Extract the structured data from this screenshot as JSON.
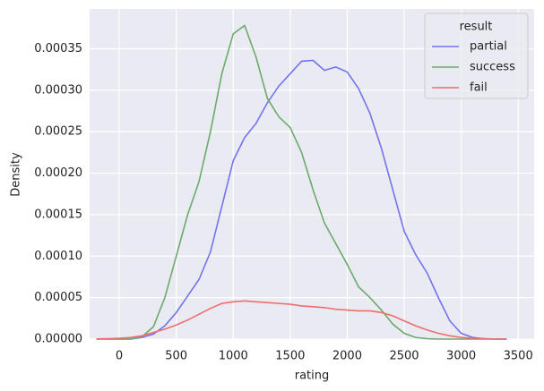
{
  "chart_data": {
    "type": "line",
    "xlabel": "rating",
    "ylabel": "Density",
    "x": [
      -200,
      -100,
      0,
      100,
      200,
      300,
      400,
      500,
      600,
      700,
      800,
      900,
      1000,
      1100,
      1200,
      1300,
      1400,
      1500,
      1600,
      1700,
      1800,
      1900,
      2000,
      2100,
      2200,
      2300,
      2400,
      2500,
      2600,
      2700,
      2800,
      2900,
      3000,
      3100,
      3200,
      3300,
      3400
    ],
    "series": [
      {
        "name": "partial",
        "color": "#7373ee",
        "values": [
          0,
          0,
          0,
          0,
          2e-06,
          6e-06,
          1.6e-05,
          3.2e-05,
          5.2e-05,
          7.2e-05,
          0.000105,
          0.00016,
          0.000215,
          0.000243,
          0.00026,
          0.000285,
          0.000305,
          0.00032,
          0.000335,
          0.000336,
          0.000324,
          0.000328,
          0.000322,
          0.000302,
          0.000272,
          0.00023,
          0.00018,
          0.00013,
          0.000102,
          8e-05,
          5e-05,
          2.2e-05,
          7e-06,
          2e-06,
          5e-07,
          0,
          0
        ]
      },
      {
        "name": "success",
        "color": "#6aab6a",
        "values": [
          0,
          0,
          0,
          0,
          3e-06,
          1.5e-05,
          5e-05,
          0.0001,
          0.00015,
          0.00019,
          0.00025,
          0.00032,
          0.000368,
          0.000378,
          0.00034,
          0.00029,
          0.000268,
          0.000255,
          0.000225,
          0.00018,
          0.00014,
          0.000115,
          9e-05,
          6.3e-05,
          5e-05,
          3.5e-05,
          1.8e-05,
          7e-06,
          2e-06,
          5e-07,
          0,
          0,
          0,
          0,
          0,
          0,
          0
        ]
      },
      {
        "name": "fail",
        "color": "#f06c6c",
        "values": [
          2e-07,
          5e-07,
          1e-06,
          2e-06,
          4e-06,
          8e-06,
          1.2e-05,
          1.7e-05,
          2.3e-05,
          3e-05,
          3.7e-05,
          4.3e-05,
          4.5e-05,
          4.6e-05,
          4.5e-05,
          4.4e-05,
          4.3e-05,
          4.2e-05,
          4e-05,
          3.9e-05,
          3.8e-05,
          3.6e-05,
          3.5e-05,
          3.4e-05,
          3.4e-05,
          3.2e-05,
          2.8e-05,
          2.2e-05,
          1.6e-05,
          1.1e-05,
          7e-06,
          4e-06,
          2e-06,
          1e-06,
          5e-07,
          0,
          0
        ]
      }
    ],
    "legend_title": "result",
    "legend": "upper right",
    "grid": true,
    "xlim": [
      -260,
      3640
    ],
    "xticks": [
      0,
      500,
      1000,
      1500,
      2000,
      2500,
      3000,
      3500
    ],
    "ylim": [
      0,
      0.000398
    ],
    "yticks": [
      {
        "value": 0,
        "label": "0.00000"
      },
      {
        "value": 5e-05,
        "label": "0.00005"
      },
      {
        "value": 0.0001,
        "label": "0.00010"
      },
      {
        "value": 0.00015,
        "label": "0.00015"
      },
      {
        "value": 0.0002,
        "label": "0.00020"
      },
      {
        "value": 0.00025,
        "label": "0.00025"
      },
      {
        "value": 0.0003,
        "label": "0.00030"
      },
      {
        "value": 0.00035,
        "label": "0.00035"
      }
    ]
  }
}
